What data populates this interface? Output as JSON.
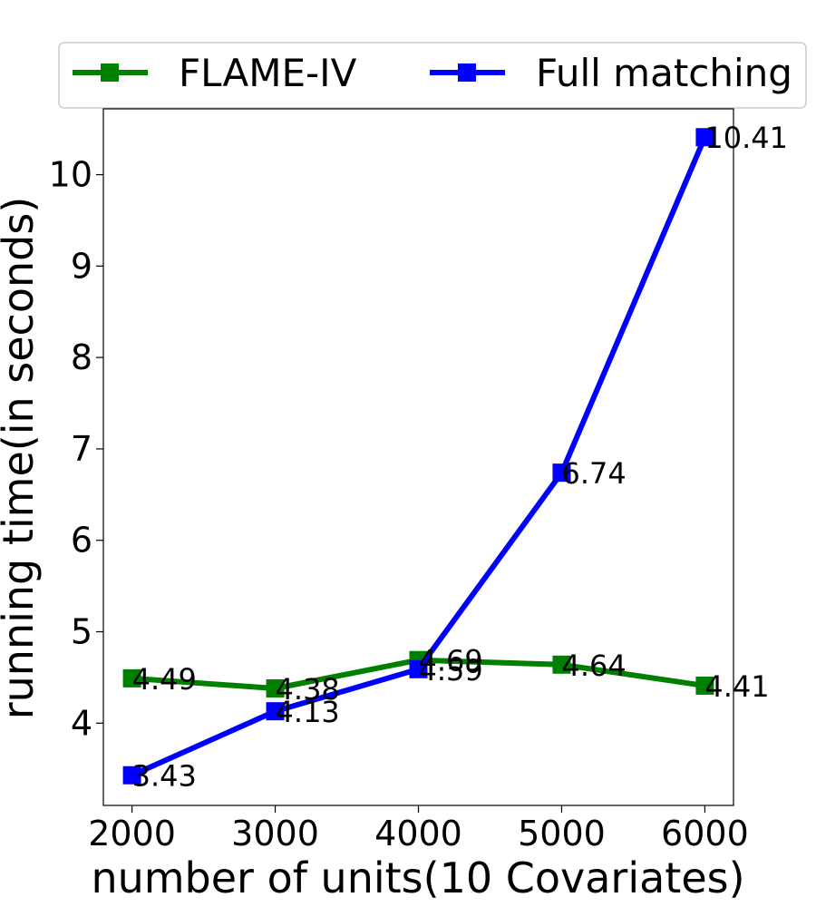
{
  "chart_data": {
    "type": "line",
    "title": "",
    "xlabel": "number of units(10 Covariates)",
    "ylabel": "running time(in seconds)",
    "x": [
      2000,
      3000,
      4000,
      5000,
      6000
    ],
    "xticks": [
      "2000",
      "3000",
      "4000",
      "5000",
      "6000"
    ],
    "yticks": [
      4,
      5,
      6,
      7,
      8,
      9,
      10
    ],
    "xlim": [
      1800,
      6200
    ],
    "ylim": [
      3.1,
      10.72
    ],
    "grid": false,
    "legend_position": "top, outside plot",
    "marker": "square",
    "series": [
      {
        "name": "FLAME-IV",
        "color": "#008000",
        "values": [
          4.49,
          4.38,
          4.69,
          4.64,
          4.41
        ],
        "labels": [
          "4.49",
          "4.38",
          "4.69",
          "4.64",
          "4.41"
        ]
      },
      {
        "name": "Full matching",
        "color": "#0000ff",
        "values": [
          3.43,
          4.13,
          4.59,
          6.74,
          10.41
        ],
        "labels": [
          "3.43",
          "4.13",
          "4.59",
          "6.74",
          "10.41"
        ]
      }
    ]
  }
}
